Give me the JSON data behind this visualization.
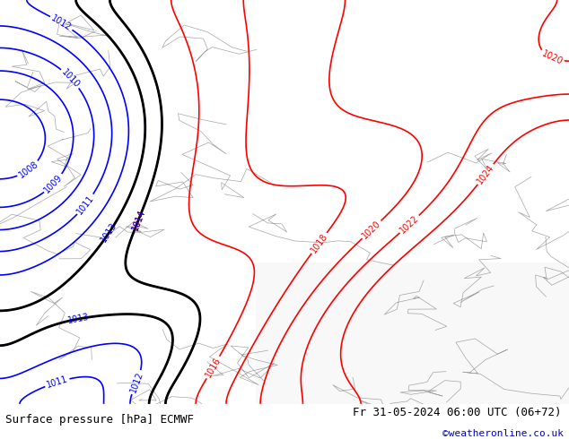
{
  "title_left": "Surface pressure [hPa] ECMWF",
  "title_right": "Fr 31-05-2024 06:00 UTC (06+72)",
  "credit": "©weatheronline.co.uk",
  "bg_color": "#c8e6c9",
  "land_color": "#c8e6c9",
  "sea_color": "#ddeeff",
  "fig_width": 6.34,
  "fig_height": 4.9,
  "dpi": 100,
  "bottom_bar_color": "#ffffff",
  "bottom_bar_height": 0.08,
  "title_fontsize": 9,
  "credit_fontsize": 8,
  "credit_color": "#0000cc"
}
